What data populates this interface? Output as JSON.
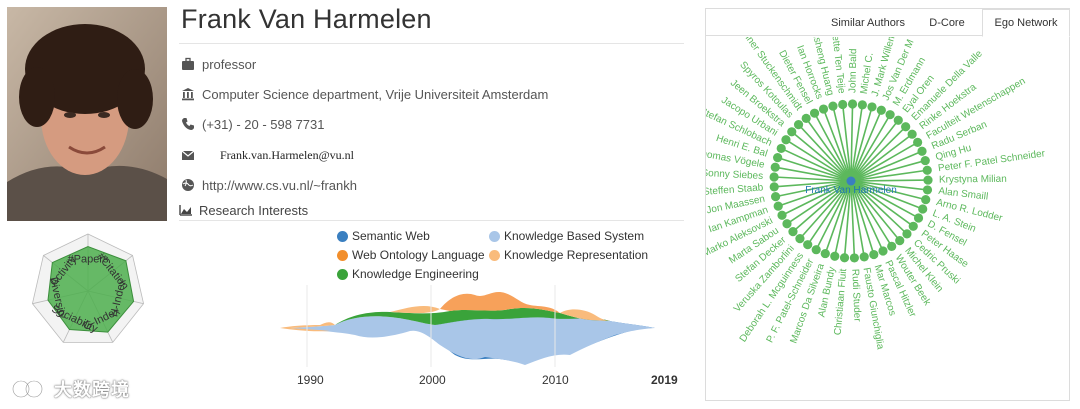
{
  "profile": {
    "name": "Frank Van Harmelen",
    "position": "professor",
    "affiliation": "Computer Science department, Vrije Universiteit Amsterdam",
    "phone": "(+31) - 20 - 598 7731",
    "email": "Frank.van.Harmelen@vu.nl",
    "homepage": "http://www.cs.vu.nl/~frankh",
    "section_title": "Research Interests"
  },
  "radar": {
    "axes": [
      "#Papers",
      "#Citation",
      "H-Index",
      "G-Index",
      "Sociability",
      "Diversity",
      "Activity"
    ],
    "values": [
      0.78,
      0.85,
      0.82,
      0.8,
      0.75,
      0.72,
      0.8
    ]
  },
  "interests_legend": [
    {
      "label": "Semantic Web",
      "color": "#3a7fc0"
    },
    {
      "label": "Knowledge Based System",
      "color": "#a9c6e8"
    },
    {
      "label": "Web Ontology Language",
      "color": "#f28e2b"
    },
    {
      "label": "Knowledge Representation",
      "color": "#f9bb7c"
    },
    {
      "label": "Knowledge Engineering",
      "color": "#3aa33a"
    }
  ],
  "chart_data": {
    "type": "area",
    "x_ticks": [
      "1990",
      "2000",
      "2010",
      "2019"
    ],
    "xlim": [
      1988,
      2019
    ]
  },
  "tabs": [
    {
      "label": "Similar Authors",
      "active": false
    },
    {
      "label": "D-Core",
      "active": false
    },
    {
      "label": "Ego Network",
      "active": true
    }
  ],
  "ego_network": {
    "center": "Frank Van Harmelen",
    "nodes": [
      "John Bald",
      "Michel C.",
      "J. Mark Willem",
      "Jos Van Der M",
      "M. Erdmann",
      "Eyal Oren",
      "Emanuele Della Valle",
      "Rinke Hoekstra",
      "Faculteit Wetenschappen",
      "Radu Serban",
      "Qing Hu",
      "Peter F. Patel Schneider",
      "Krystyna Milian",
      "Alan Smaill",
      "Arno R. Lodder",
      "L. A. Stein",
      "D. Fensel",
      "Peter Haase",
      "Cedric Pruski",
      "Michel Klein",
      "Wouter Beek",
      "Pascal Hitzler",
      "Mar Marcos",
      "Fausto Giunchiglia",
      "Rudi Studer",
      "Christiaan Fluit",
      "Alan Bundy",
      "Marcos Da Silveira",
      "P. F. Patel-Schneider",
      "Deborah L. Mcguinness",
      "Veruska Zamborlini",
      "Stefan Decker",
      "Marta Sabou",
      "Marko Aleksovski",
      "Ian Kampman",
      "Jon Maassen",
      "Steffen Staab",
      "Sonny Siebes",
      "Thomas Vögele",
      "Henri E. Bal",
      "Stefan Schlobach",
      "Jacopo Urbani",
      "Jeen Broekstra",
      "Spyros Kotoulas",
      "Heiner Stuckenschmidt",
      "Dieter Fensel",
      "Ian Horrocks",
      "Zhisheng Huang",
      "Annette Ten Teije"
    ]
  },
  "watermark": {
    "text": "大数跨境"
  },
  "colors": {
    "accent_green": "#5cb85c",
    "center_blue": "#1f77b4"
  }
}
